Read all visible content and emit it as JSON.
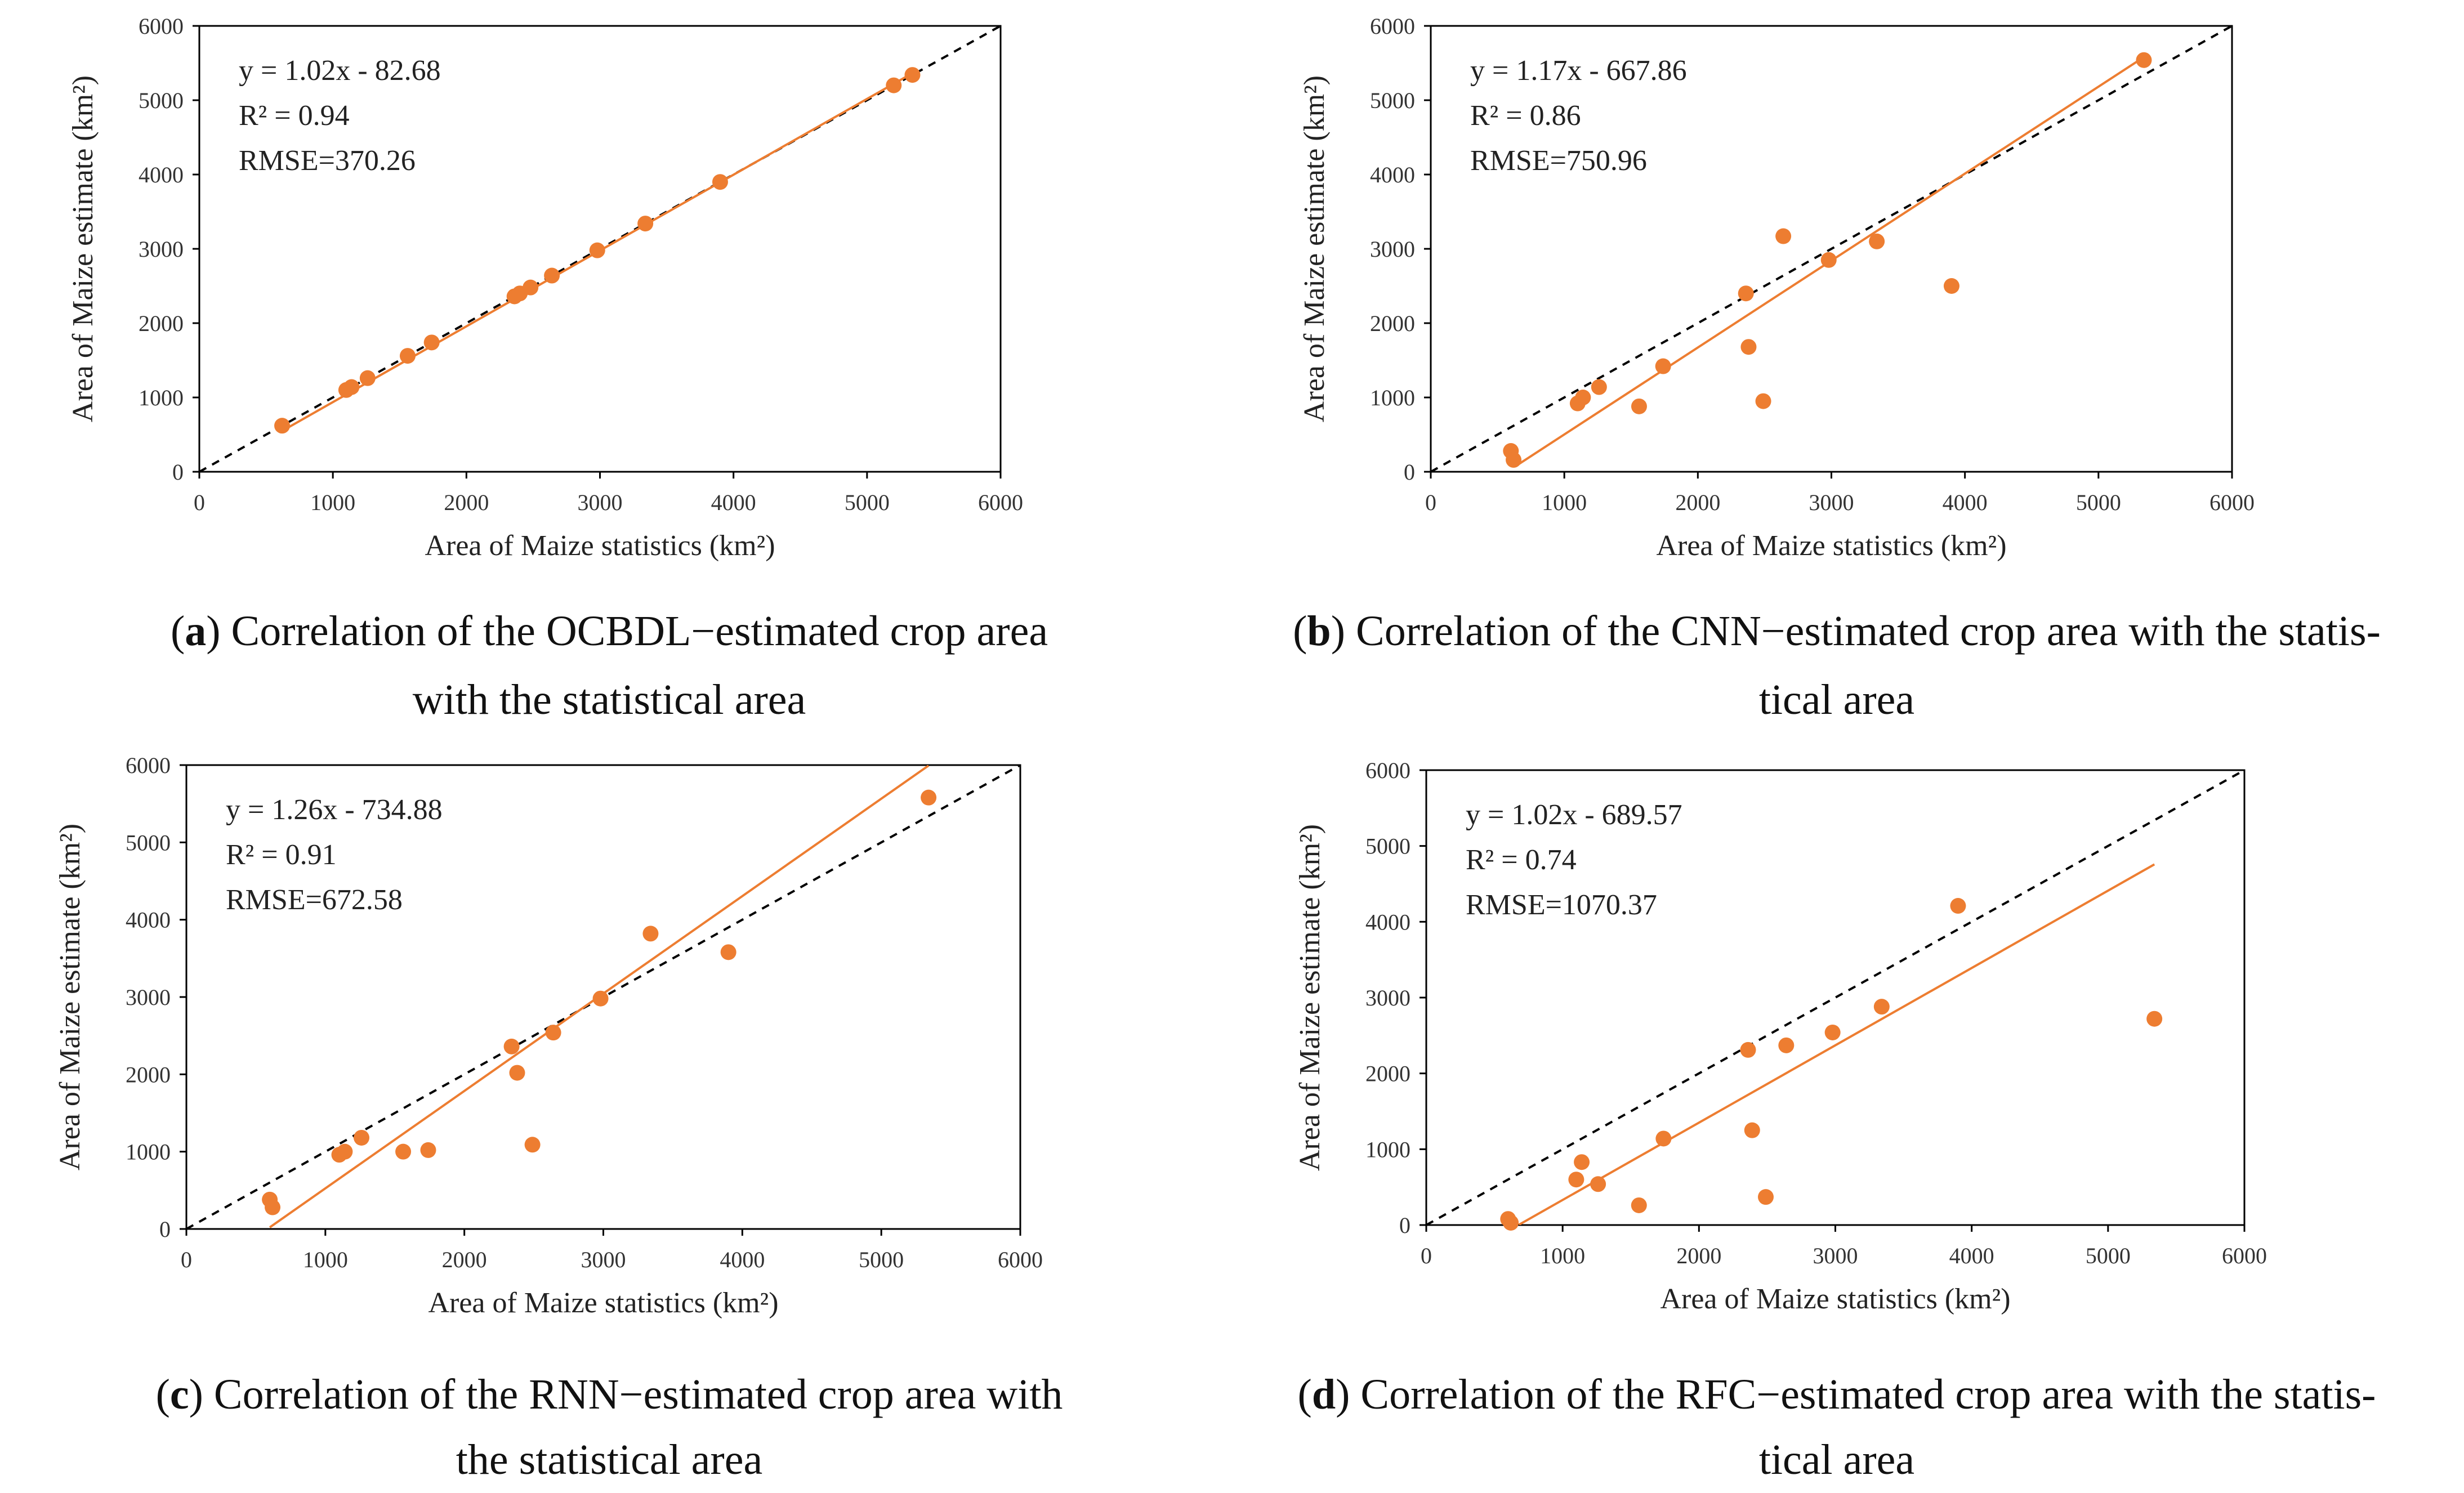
{
  "chart_data": [
    {
      "id": "a",
      "type": "scatter",
      "xlabel": "Area of Maize statistics (km²)",
      "ylabel": "Area of Maize estimate (km²)",
      "xlim": [
        0,
        6000
      ],
      "ylim": [
        0,
        6000
      ],
      "xticks": [
        0,
        1000,
        2000,
        3000,
        4000,
        5000,
        6000
      ],
      "yticks": [
        0,
        1000,
        2000,
        3000,
        4000,
        5000,
        6000
      ],
      "grid": false,
      "stats": [
        "y = 1.02x - 82.68",
        "R² = 0.94",
        "RMSE=370.26"
      ],
      "fit": {
        "slope": 1.02,
        "intercept": -82.68,
        "x_range": [
          600,
          5340
        ]
      },
      "identity_line": true,
      "points": [
        [
          620,
          620
        ],
        [
          1100,
          1100
        ],
        [
          1140,
          1140
        ],
        [
          1260,
          1260
        ],
        [
          1560,
          1560
        ],
        [
          1740,
          1740
        ],
        [
          2360,
          2360
        ],
        [
          2400,
          2400
        ],
        [
          2480,
          2480
        ],
        [
          2640,
          2640
        ],
        [
          2980,
          2980
        ],
        [
          3340,
          3340
        ],
        [
          3900,
          3900
        ],
        [
          5200,
          5200
        ],
        [
          5340,
          5340
        ]
      ],
      "caption_letter": "a",
      "caption_lines": [
        ") Correlation of the OCBDL−estimated crop area",
        "with the statistical area"
      ]
    },
    {
      "id": "b",
      "type": "scatter",
      "xlabel": "Area of Maize statistics (km²)",
      "ylabel": "Area of Maize estimate (km²)",
      "xlim": [
        0,
        6000
      ],
      "ylim": [
        0,
        6000
      ],
      "xticks": [
        0,
        1000,
        2000,
        3000,
        4000,
        5000,
        6000
      ],
      "yticks": [
        0,
        1000,
        2000,
        3000,
        4000,
        5000,
        6000
      ],
      "grid": false,
      "stats": [
        "y = 1.17x - 667.86",
        "R² = 0.86",
        "RMSE=750.96"
      ],
      "fit": {
        "slope": 1.17,
        "intercept": -667.86,
        "x_range": [
          640,
          5340
        ]
      },
      "identity_line": true,
      "points": [
        [
          600,
          280
        ],
        [
          620,
          160
        ],
        [
          1100,
          920
        ],
        [
          1140,
          1000
        ],
        [
          1260,
          1140
        ],
        [
          1560,
          880
        ],
        [
          1740,
          1420
        ],
        [
          2360,
          2400
        ],
        [
          2380,
          1680
        ],
        [
          2490,
          950
        ],
        [
          2640,
          3170
        ],
        [
          2980,
          2850
        ],
        [
          3340,
          3100
        ],
        [
          3900,
          2500
        ],
        [
          5340,
          5540
        ]
      ],
      "caption_letter": "b",
      "caption_lines": [
        ") Correlation of the CNN−estimated crop area with the statis-",
        "tical area"
      ]
    },
    {
      "id": "c",
      "type": "scatter",
      "xlabel": "Area of Maize statistics (km²)",
      "ylabel": "Area of Maize estimate (km²)",
      "xlim": [
        0,
        6000
      ],
      "ylim": [
        0,
        6000
      ],
      "xticks": [
        0,
        1000,
        2000,
        3000,
        4000,
        5000,
        6000
      ],
      "yticks": [
        0,
        1000,
        2000,
        3000,
        4000,
        5000,
        6000
      ],
      "grid": false,
      "stats": [
        "y = 1.26x - 734.88",
        "R² = 0.91",
        "RMSE=672.58"
      ],
      "fit": {
        "slope": 1.26,
        "intercept": -734.88,
        "x_range": [
          600,
          5340
        ]
      },
      "identity_line": true,
      "points": [
        [
          600,
          380
        ],
        [
          620,
          280
        ],
        [
          1100,
          960
        ],
        [
          1140,
          1000
        ],
        [
          1260,
          1180
        ],
        [
          1560,
          1000
        ],
        [
          1740,
          1020
        ],
        [
          2340,
          2360
        ],
        [
          2380,
          2020
        ],
        [
          2490,
          1090
        ],
        [
          2640,
          2540
        ],
        [
          2980,
          2980
        ],
        [
          3340,
          3820
        ],
        [
          3900,
          3580
        ],
        [
          5340,
          5580
        ]
      ],
      "caption_letter": "c",
      "caption_lines": [
        ") Correlation of the RNN−estimated crop area with",
        "the statistical area"
      ]
    },
    {
      "id": "d",
      "type": "scatter",
      "xlabel": "Area of Maize statistics (km²)",
      "ylabel": "Area of Maize estimate (km²)",
      "xlim": [
        0,
        6000
      ],
      "ylim": [
        0,
        6000
      ],
      "xticks": [
        0,
        1000,
        2000,
        3000,
        4000,
        5000,
        6000
      ],
      "yticks": [
        0,
        1000,
        2000,
        3000,
        4000,
        5000,
        6000
      ],
      "grid": false,
      "stats": [
        "y = 1.02x - 689.57",
        "R² = 0.74",
        "RMSE=1070.37"
      ],
      "fit": {
        "slope": 1.02,
        "intercept": -689.57,
        "x_range": [
          680,
          5340
        ]
      },
      "identity_line": true,
      "points": [
        [
          600,
          80
        ],
        [
          620,
          30
        ],
        [
          1100,
          600
        ],
        [
          1140,
          830
        ],
        [
          1260,
          540
        ],
        [
          1560,
          260
        ],
        [
          1740,
          1140
        ],
        [
          2360,
          2310
        ],
        [
          2390,
          1250
        ],
        [
          2490,
          370
        ],
        [
          2640,
          2370
        ],
        [
          2980,
          2540
        ],
        [
          3340,
          2880
        ],
        [
          3900,
          4210
        ],
        [
          5340,
          2720
        ]
      ],
      "caption_letter": "d",
      "caption_lines": [
        ") Correlation of the RFC−estimated crop area with the statis-",
        "tical area"
      ]
    }
  ],
  "colors": {
    "point": "#ED7D31",
    "fit_line": "#ED7D31",
    "identity_line": "#000000",
    "axis": "#000000"
  }
}
